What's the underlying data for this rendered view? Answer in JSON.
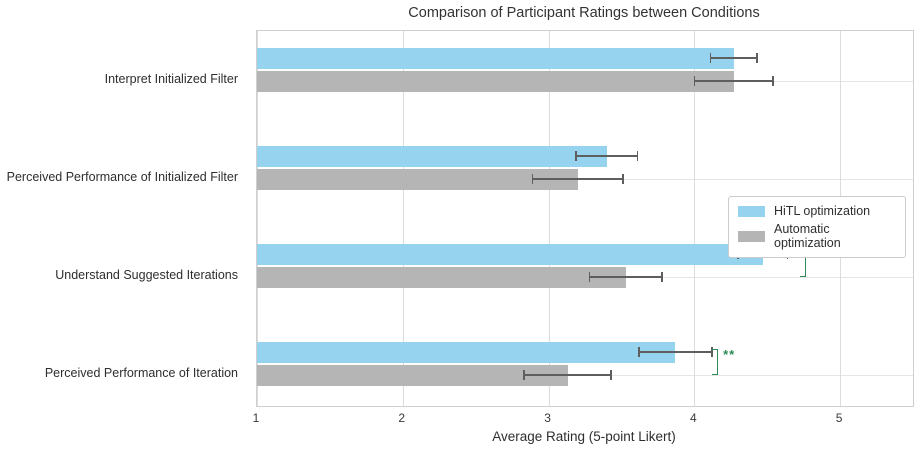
{
  "chart_data": {
    "type": "bar",
    "orientation": "horizontal",
    "title": "Comparison of Participant Ratings between Conditions",
    "xlabel": "Average Rating (5-point Likert)",
    "ylabel": "",
    "categories": [
      "Interpret Initialized Filter",
      "Perceived Performance of Initialized Filter",
      "Understand Suggested Iterations",
      "Perceived Performance of Iteration"
    ],
    "series": [
      {
        "name": "HiTL optimization",
        "color": "#95d3ee",
        "values": [
          4.27,
          3.4,
          4.47,
          3.87
        ],
        "errors": [
          0.16,
          0.21,
          0.17,
          0.25
        ]
      },
      {
        "name": "Automatic optimization",
        "color": "#b5b5b5",
        "values": [
          4.27,
          3.2,
          3.53,
          3.13
        ],
        "errors": [
          0.27,
          0.31,
          0.25,
          0.3
        ]
      }
    ],
    "xlim": [
      1,
      5.5
    ],
    "xticks": [
      1,
      2,
      3,
      4,
      5
    ],
    "grid": true,
    "legend_position": "center-right",
    "error_bar_color": "#5e5e5e",
    "significance_color": "#2e8b57",
    "significance": [
      {
        "category_index": 2,
        "label": "**",
        "x": 4.77
      },
      {
        "category_index": 3,
        "label": "**",
        "x": 4.17
      }
    ]
  }
}
